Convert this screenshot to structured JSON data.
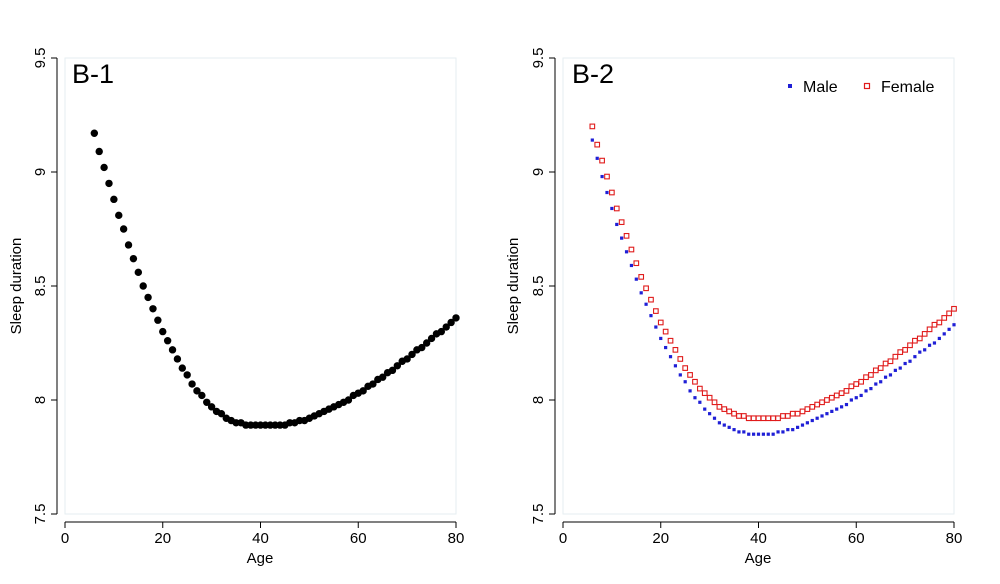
{
  "chart_data": [
    {
      "type": "scatter",
      "panel_label": "B-1",
      "xlabel": "Age",
      "ylabel": "Sleep duration",
      "xlim": [
        0,
        80
      ],
      "ylim": [
        7.5,
        9.5
      ],
      "xticks": [
        "0",
        "20",
        "40",
        "60",
        "80"
      ],
      "yticks": [
        "7.5",
        "8",
        "8.5",
        "9",
        "9.5"
      ],
      "grid": false,
      "series": [
        {
          "color": "#000000",
          "marker": "filled-circle",
          "x": [
            6,
            7,
            8,
            9,
            10,
            11,
            12,
            13,
            14,
            15,
            16,
            17,
            18,
            19,
            20,
            21,
            22,
            23,
            24,
            25,
            26,
            27,
            28,
            29,
            30,
            31,
            32,
            33,
            34,
            35,
            36,
            37,
            38,
            39,
            40,
            41,
            42,
            43,
            44,
            45,
            46,
            47,
            48,
            49,
            50,
            51,
            52,
            53,
            54,
            55,
            56,
            57,
            58,
            59,
            60,
            61,
            62,
            63,
            64,
            65,
            66,
            67,
            68,
            69,
            70,
            71,
            72,
            73,
            74,
            75,
            76,
            77,
            78,
            79,
            80
          ],
          "y": [
            9.17,
            9.09,
            9.02,
            8.95,
            8.88,
            8.81,
            8.75,
            8.68,
            8.62,
            8.56,
            8.5,
            8.45,
            8.4,
            8.35,
            8.3,
            8.26,
            8.22,
            8.18,
            8.14,
            8.11,
            8.07,
            8.04,
            8.02,
            7.99,
            7.97,
            7.95,
            7.94,
            7.92,
            7.91,
            7.9,
            7.9,
            7.89,
            7.89,
            7.89,
            7.89,
            7.89,
            7.89,
            7.89,
            7.89,
            7.89,
            7.9,
            7.9,
            7.91,
            7.91,
            7.92,
            7.93,
            7.94,
            7.95,
            7.96,
            7.97,
            7.98,
            7.99,
            8.0,
            8.02,
            8.03,
            8.04,
            8.06,
            8.07,
            8.09,
            8.1,
            8.12,
            8.13,
            8.15,
            8.17,
            8.18,
            8.2,
            8.22,
            8.23,
            8.25,
            8.27,
            8.29,
            8.3,
            8.32,
            8.34,
            8.36
          ]
        }
      ]
    },
    {
      "type": "scatter",
      "panel_label": "B-2",
      "xlabel": "Age",
      "ylabel": "Sleep duration",
      "xlim": [
        0,
        80
      ],
      "ylim": [
        7.5,
        9.5
      ],
      "xticks": [
        "0",
        "20",
        "40",
        "60",
        "80"
      ],
      "yticks": [
        "7.5",
        "8",
        "8.5",
        "9",
        "9.5"
      ],
      "grid": false,
      "legend_position": "top-right",
      "series": [
        {
          "name": "Male",
          "color": "#1f1fd6",
          "marker": "small-filled-square",
          "x": [
            6,
            7,
            8,
            9,
            10,
            11,
            12,
            13,
            14,
            15,
            16,
            17,
            18,
            19,
            20,
            21,
            22,
            23,
            24,
            25,
            26,
            27,
            28,
            29,
            30,
            31,
            32,
            33,
            34,
            35,
            36,
            37,
            38,
            39,
            40,
            41,
            42,
            43,
            44,
            45,
            46,
            47,
            48,
            49,
            50,
            51,
            52,
            53,
            54,
            55,
            56,
            57,
            58,
            59,
            60,
            61,
            62,
            63,
            64,
            65,
            66,
            67,
            68,
            69,
            70,
            71,
            72,
            73,
            74,
            75,
            76,
            77,
            78,
            79,
            80
          ],
          "y": [
            9.14,
            9.06,
            8.98,
            8.91,
            8.84,
            8.77,
            8.71,
            8.65,
            8.59,
            8.53,
            8.47,
            8.42,
            8.37,
            8.32,
            8.27,
            8.23,
            8.19,
            8.15,
            8.11,
            8.08,
            8.04,
            8.01,
            7.99,
            7.96,
            7.94,
            7.92,
            7.9,
            7.89,
            7.88,
            7.87,
            7.86,
            7.86,
            7.85,
            7.85,
            7.85,
            7.85,
            7.85,
            7.85,
            7.86,
            7.86,
            7.87,
            7.87,
            7.88,
            7.89,
            7.9,
            7.91,
            7.92,
            7.93,
            7.94,
            7.95,
            7.96,
            7.97,
            7.98,
            8.0,
            8.01,
            8.02,
            8.04,
            8.05,
            8.07,
            8.08,
            8.1,
            8.11,
            8.13,
            8.14,
            8.16,
            8.17,
            8.19,
            8.21,
            8.22,
            8.24,
            8.25,
            8.27,
            8.29,
            8.31,
            8.33
          ]
        },
        {
          "name": "Female",
          "color": "#e01b1b",
          "marker": "hollow-square",
          "x": [
            6,
            7,
            8,
            9,
            10,
            11,
            12,
            13,
            14,
            15,
            16,
            17,
            18,
            19,
            20,
            21,
            22,
            23,
            24,
            25,
            26,
            27,
            28,
            29,
            30,
            31,
            32,
            33,
            34,
            35,
            36,
            37,
            38,
            39,
            40,
            41,
            42,
            43,
            44,
            45,
            46,
            47,
            48,
            49,
            50,
            51,
            52,
            53,
            54,
            55,
            56,
            57,
            58,
            59,
            60,
            61,
            62,
            63,
            64,
            65,
            66,
            67,
            68,
            69,
            70,
            71,
            72,
            73,
            74,
            75,
            76,
            77,
            78,
            79,
            80
          ],
          "y": [
            9.2,
            9.12,
            9.05,
            8.98,
            8.91,
            8.84,
            8.78,
            8.72,
            8.66,
            8.6,
            8.54,
            8.49,
            8.44,
            8.39,
            8.34,
            8.3,
            8.26,
            8.22,
            8.18,
            8.14,
            8.11,
            8.08,
            8.05,
            8.03,
            8.01,
            7.99,
            7.97,
            7.96,
            7.95,
            7.94,
            7.93,
            7.93,
            7.92,
            7.92,
            7.92,
            7.92,
            7.92,
            7.92,
            7.92,
            7.93,
            7.93,
            7.94,
            7.94,
            7.95,
            7.96,
            7.97,
            7.98,
            7.99,
            8.0,
            8.01,
            8.02,
            8.03,
            8.04,
            8.06,
            8.07,
            8.08,
            8.1,
            8.11,
            8.13,
            8.14,
            8.16,
            8.17,
            8.19,
            8.21,
            8.22,
            8.24,
            8.26,
            8.27,
            8.29,
            8.31,
            8.33,
            8.34,
            8.36,
            8.38,
            8.4
          ]
        }
      ]
    }
  ]
}
